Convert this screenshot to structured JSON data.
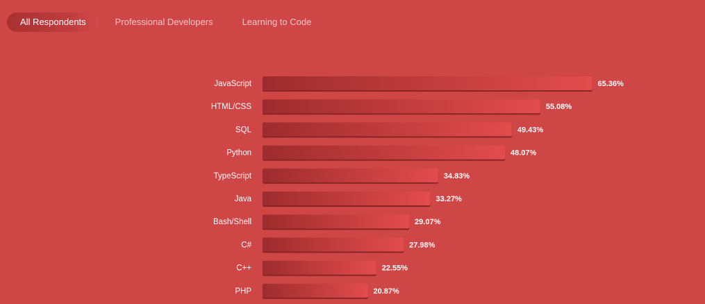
{
  "tabs": [
    {
      "label": "All Respondents",
      "active": true
    },
    {
      "label": "Professional Developers",
      "active": false
    },
    {
      "label": "Learning to Code",
      "active": false
    }
  ],
  "colors": {
    "background": "#cf4647",
    "bar_start": "#9e2c2d",
    "bar_end": "#e24c4d",
    "bar_shadow": "#8a2526"
  },
  "chart_data": {
    "type": "bar",
    "orientation": "horizontal",
    "categories": [
      "JavaScript",
      "HTML/CSS",
      "SQL",
      "Python",
      "TypeScript",
      "Java",
      "Bash/Shell",
      "C#",
      "C++",
      "PHP"
    ],
    "values": [
      65.36,
      55.08,
      49.43,
      48.07,
      34.83,
      33.27,
      29.07,
      27.98,
      22.55,
      20.87
    ],
    "value_labels": [
      "65.36%",
      "55.08%",
      "49.43%",
      "48.07%",
      "34.83%",
      "33.27%",
      "29.07%",
      "27.98%",
      "22.55%",
      "20.87%"
    ],
    "xlim": [
      0,
      100
    ],
    "grid": false,
    "title": "",
    "xlabel": "",
    "ylabel": ""
  }
}
